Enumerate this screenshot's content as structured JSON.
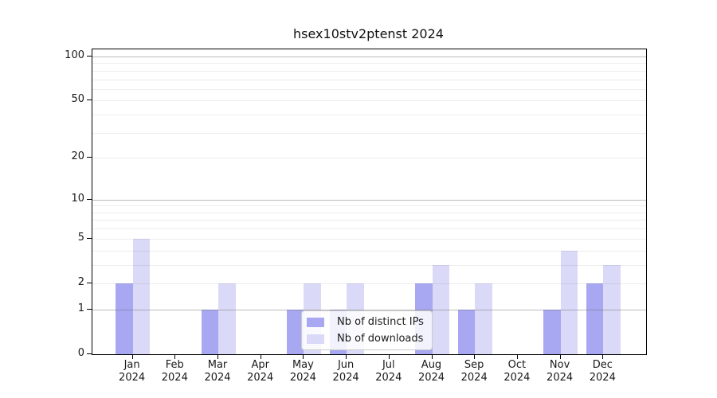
{
  "title": "hsex10stv2ptenst 2024",
  "chart_data": {
    "type": "bar",
    "title": "hsex10stv2ptenst 2024",
    "categories": [
      "Jan",
      "Feb",
      "Mar",
      "Apr",
      "May",
      "Jun",
      "Jul",
      "Aug",
      "Sep",
      "Oct",
      "Nov",
      "Dec"
    ],
    "category_year_label": "2024",
    "series": [
      {
        "name": "Nb of distinct IPs",
        "color": "#a8a8f2",
        "values": [
          2,
          0,
          1,
          0,
          1,
          1,
          0,
          2,
          1,
          0,
          1,
          2
        ]
      },
      {
        "name": "Nb of downloads",
        "color": "#dadaf8",
        "values": [
          5,
          0,
          2,
          0,
          2,
          2,
          0,
          3,
          2,
          0,
          4,
          3
        ]
      }
    ],
    "xlabel": "",
    "ylabel": "",
    "y_axis": {
      "scale": "log1p",
      "tick_values": [
        0,
        1,
        2,
        5,
        10,
        20,
        50,
        100
      ],
      "tick_labels": [
        "0",
        "1",
        "2",
        "5",
        "10",
        "20",
        "50",
        "100"
      ],
      "major_gridlines": [
        1,
        10,
        100
      ],
      "minor_gridlines": [
        2,
        3,
        4,
        5,
        6,
        7,
        8,
        9,
        20,
        30,
        40,
        50,
        60,
        70,
        80,
        90
      ],
      "ylim": [
        0,
        112
      ]
    },
    "grid": true,
    "legend_position": "lower center"
  }
}
